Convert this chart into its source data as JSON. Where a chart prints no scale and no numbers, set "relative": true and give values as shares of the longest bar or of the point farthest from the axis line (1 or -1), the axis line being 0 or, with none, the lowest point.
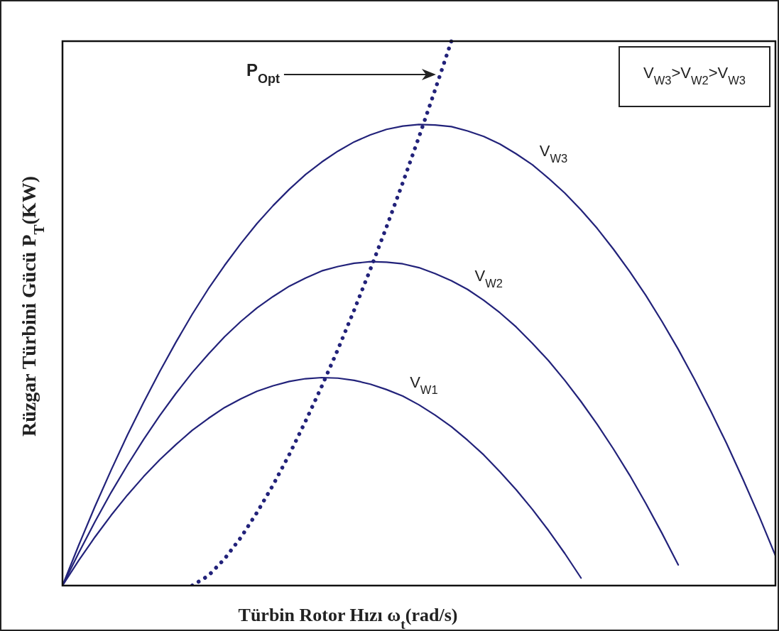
{
  "chart_data": {
    "type": "line",
    "relative": true,
    "xlabel": "Türbin Rotor Hızı ω$_{t}$(rad/s)",
    "ylabel": "Rüzgar Türbini Gücü P$_{T}$(KW)",
    "categories": [
      null,
      null,
      null,
      null,
      null,
      null,
      null,
      null,
      null,
      null,
      null,
      null,
      null,
      null,
      null,
      null,
      null,
      null,
      null,
      null,
      null,
      null,
      null,
      null,
      null,
      null,
      null,
      null,
      null,
      null,
      null,
      null,
      null,
      null,
      null,
      null,
      null,
      null,
      null,
      null,
      null,
      null,
      null,
      null,
      null
    ],
    "marker": "none",
    "series": [
      {
        "name": "V$_{W1}$",
        "color": "#22227a",
        "line_style": "solid",
        "values": [
          0,
          0.046,
          0.089,
          0.129,
          0.166,
          0.2,
          0.231,
          0.259,
          0.285,
          0.307,
          0.327,
          0.343,
          0.357,
          0.367,
          0.375,
          0.38,
          0.382,
          0.381,
          0.377,
          0.37,
          0.36,
          0.348,
          0.332,
          0.313,
          0.292,
          0.267,
          0.24,
          0.209,
          0.176,
          0.14,
          0.101,
          0.059,
          0.014,
          null,
          null,
          null,
          null,
          null,
          null,
          null,
          null,
          null,
          null,
          null,
          null
        ]
      },
      {
        "name": "V$_{W2}$",
        "color": "#22227a",
        "line_style": "solid",
        "values": [
          0,
          0.06,
          0.117,
          0.171,
          0.221,
          0.268,
          0.312,
          0.353,
          0.391,
          0.425,
          0.457,
          0.485,
          0.51,
          0.531,
          0.55,
          0.565,
          0.578,
          0.586,
          0.592,
          0.595,
          0.594,
          0.591,
          0.584,
          0.573,
          0.56,
          0.544,
          0.524,
          0.501,
          0.475,
          0.445,
          0.413,
          0.377,
          0.338,
          0.296,
          0.251,
          0.203,
          0.151,
          0.096,
          0.038,
          null,
          null,
          null,
          null,
          null,
          null
        ]
      },
      {
        "name": "V$_{W3}$",
        "color": "#22227a",
        "line_style": "solid",
        "values": [
          0,
          0.074,
          0.145,
          0.212,
          0.276,
          0.336,
          0.393,
          0.447,
          0.498,
          0.545,
          0.588,
          0.628,
          0.665,
          0.698,
          0.728,
          0.755,
          0.778,
          0.798,
          0.815,
          0.828,
          0.838,
          0.844,
          0.847,
          0.846,
          0.843,
          0.835,
          0.825,
          0.811,
          0.793,
          0.773,
          0.748,
          0.721,
          0.69,
          0.656,
          0.618,
          0.577,
          0.533,
          0.485,
          0.434,
          0.379,
          0.321,
          0.26,
          0.195,
          0.127,
          0.055
        ]
      },
      {
        "color": "#22227a",
        "line_style": "dotted",
        "values": [
          null,
          null,
          null,
          null,
          null,
          null,
          null,
          null,
          0,
          0.018,
          0.049,
          0.088,
          0.134,
          0.185,
          0.241,
          0.302,
          0.366,
          0.434,
          0.506,
          0.581,
          0.659,
          0.74,
          0.824,
          0.911,
          1,
          null,
          null,
          null,
          null,
          null,
          null,
          null,
          null,
          null,
          null,
          null,
          null,
          null,
          null,
          null,
          null,
          null,
          null,
          null,
          null
        ]
      }
    ],
    "annotations": [
      "P$_{Opt}$",
      "V$_{W3}$>V$_{W2}$>V$_{W3}$"
    ]
  }
}
